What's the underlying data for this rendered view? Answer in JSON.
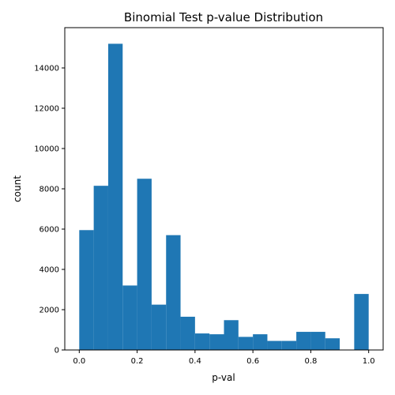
{
  "chart_data": {
    "type": "bar",
    "title": "Binomial Test p-value Distribution",
    "xlabel": "p-val",
    "ylabel": "count",
    "bin_edges": [
      0.0,
      0.05,
      0.1,
      0.15,
      0.2,
      0.25,
      0.3,
      0.35,
      0.4,
      0.45,
      0.5,
      0.55,
      0.6,
      0.65,
      0.7,
      0.75,
      0.8,
      0.85,
      0.9,
      0.95,
      1.0
    ],
    "values": [
      5950,
      8150,
      15200,
      3200,
      8500,
      2250,
      5700,
      1650,
      820,
      780,
      1480,
      650,
      780,
      450,
      450,
      900,
      900,
      580,
      0,
      2780
    ],
    "xlim": [
      -0.05,
      1.05
    ],
    "ylim": [
      0,
      16000
    ],
    "xticks": [
      0.0,
      0.2,
      0.4,
      0.6,
      0.8,
      1.0
    ],
    "xtick_labels": [
      "0.0",
      "0.2",
      "0.4",
      "0.6",
      "0.8",
      "1.0"
    ],
    "yticks": [
      0,
      2000,
      4000,
      6000,
      8000,
      10000,
      12000,
      14000
    ],
    "ytick_labels": [
      "0",
      "2000",
      "4000",
      "6000",
      "8000",
      "10000",
      "12000",
      "14000"
    ],
    "bar_color": "#1f77b4",
    "grid": false,
    "legend": "none"
  }
}
